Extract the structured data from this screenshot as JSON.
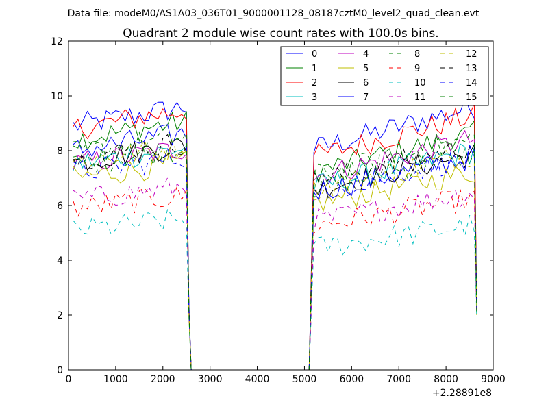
{
  "header": {
    "suptitle": "Data file: modeM0/AS1A03_036T01_9000001128_08187cztM0_level2_quad_clean.evt",
    "title": "Quadrant 2 module wise count rates with 100.0s bins."
  },
  "chart_data": {
    "type": "line",
    "title": "Quadrant 2 module wise count rates with 100.0s bins.",
    "xlabel": "",
    "ylabel": "",
    "x_offset_label": "+2.28891e8",
    "xlim": [
      0,
      9000
    ],
    "ylim": [
      0,
      12
    ],
    "xticks": [
      0,
      1000,
      2000,
      3000,
      4000,
      5000,
      6000,
      7000,
      8000,
      9000
    ],
    "yticks": [
      0,
      2,
      4,
      6,
      8,
      10,
      12
    ],
    "grid": false,
    "legend_position": "top-right",
    "legend_columns": 4,
    "x_first_segment": [
      100,
      200,
      300,
      400,
      500,
      600,
      700,
      800,
      900,
      1000,
      1100,
      1200,
      1300,
      1400,
      1500,
      1600,
      1700,
      1800,
      1900,
      2000,
      2100,
      2200,
      2300,
      2400,
      2500,
      2550,
      2600
    ],
    "x_gap": [
      2600,
      5100
    ],
    "x_second_segment": [
      5100,
      5200,
      5300,
      5400,
      5500,
      5600,
      5700,
      5800,
      5900,
      6000,
      6100,
      6200,
      6300,
      6400,
      6500,
      6600,
      6700,
      6800,
      6900,
      7000,
      7100,
      7200,
      7300,
      7400,
      7500,
      7600,
      7700,
      7800,
      7900,
      8000,
      8100,
      8200,
      8300,
      8400,
      8500,
      8600,
      8650
    ],
    "series": [
      {
        "name": "0",
        "color": "#0000ff",
        "dash": "solid",
        "level1": 8.9,
        "level2": 8.9,
        "drop": 2.2
      },
      {
        "name": "1",
        "color": "#008000",
        "dash": "solid",
        "level1": 8.4,
        "level2": 8.0,
        "drop": 2.3
      },
      {
        "name": "2",
        "color": "#ff0000",
        "dash": "solid",
        "level1": 8.8,
        "level2": 8.6,
        "drop": 2.4
      },
      {
        "name": "3",
        "color": "#00bfbf",
        "dash": "solid",
        "level1": 7.5,
        "level2": 7.4,
        "drop": 2.1
      },
      {
        "name": "4",
        "color": "#bf00bf",
        "dash": "solid",
        "level1": 7.5,
        "level2": 7.8,
        "drop": 2.3
      },
      {
        "name": "5",
        "color": "#bfbf00",
        "dash": "solid",
        "level1": 7.0,
        "level2": 6.7,
        "drop": 2.0
      },
      {
        "name": "6",
        "color": "#000000",
        "dash": "solid",
        "level1": 7.6,
        "level2": 7.3,
        "drop": 2.4
      },
      {
        "name": "7",
        "color": "#0000ff",
        "dash": "solid",
        "level1": 8.0,
        "level2": 7.2,
        "drop": 2.5
      },
      {
        "name": "8",
        "color": "#008000",
        "dash": "dashed",
        "level1": 7.5,
        "level2": 7.3,
        "drop": 2.2
      },
      {
        "name": "9",
        "color": "#ff0000",
        "dash": "dashed",
        "level1": 5.9,
        "level2": 5.8,
        "drop": 2.1
      },
      {
        "name": "10",
        "color": "#00bfbf",
        "dash": "dashed",
        "level1": 5.1,
        "level2": 4.9,
        "drop": 2.0
      },
      {
        "name": "11",
        "color": "#bf00bf",
        "dash": "dashed",
        "level1": 6.2,
        "level2": 6.0,
        "drop": 2.1
      },
      {
        "name": "12",
        "color": "#bfbf00",
        "dash": "dashed",
        "level1": 7.6,
        "level2": 7.3,
        "drop": 2.2
      },
      {
        "name": "13",
        "color": "#000000",
        "dash": "dashed",
        "level1": 7.7,
        "level2": 7.6,
        "drop": 2.3
      },
      {
        "name": "14",
        "color": "#0000ff",
        "dash": "dashed",
        "level1": 7.2,
        "level2": 7.2,
        "drop": 2.2
      },
      {
        "name": "15",
        "color": "#008000",
        "dash": "dashed",
        "level1": 7.9,
        "level2": 7.8,
        "drop": 2.1
      }
    ]
  }
}
